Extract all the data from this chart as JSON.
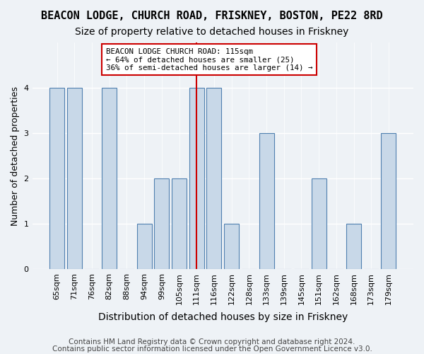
{
  "title1": "BEACON LODGE, CHURCH ROAD, FRISKNEY, BOSTON, PE22 8RD",
  "title2": "Size of property relative to detached houses in Friskney",
  "xlabel": "Distribution of detached houses by size in Friskney",
  "ylabel": "Number of detached properties",
  "categories": [
    "65sqm",
    "71sqm",
    "76sqm",
    "82sqm",
    "88sqm",
    "94sqm",
    "99sqm",
    "105sqm",
    "111sqm",
    "116sqm",
    "122sqm",
    "128sqm",
    "133sqm",
    "139sqm",
    "145sqm",
    "151sqm",
    "162sqm",
    "168sqm",
    "173sqm",
    "179sqm"
  ],
  "values": [
    4,
    4,
    0,
    4,
    0,
    1,
    2,
    2,
    4,
    4,
    1,
    0,
    3,
    0,
    0,
    2,
    0,
    1,
    0,
    3
  ],
  "bar_color": "#c8d8e8",
  "bar_edge_color": "#5080b0",
  "vline_x": 8,
  "vline_color": "#cc0000",
  "annotation_text": "BEACON LODGE CHURCH ROAD: 115sqm\n← 64% of detached houses are smaller (25)\n36% of semi-detached houses are larger (14) →",
  "annotation_box_color": "#ffffff",
  "annotation_box_edge": "#cc0000",
  "ylim": [
    0,
    5
  ],
  "yticks": [
    0,
    1,
    2,
    3,
    4
  ],
  "footer1": "Contains HM Land Registry data © Crown copyright and database right 2024.",
  "footer2": "Contains public sector information licensed under the Open Government Licence v3.0.",
  "bg_color": "#eef2f6",
  "plot_bg_color": "#eef2f6",
  "grid_color": "#ffffff",
  "title1_fontsize": 11,
  "title2_fontsize": 10,
  "xlabel_fontsize": 10,
  "ylabel_fontsize": 9,
  "tick_fontsize": 8,
  "footer_fontsize": 7.5
}
